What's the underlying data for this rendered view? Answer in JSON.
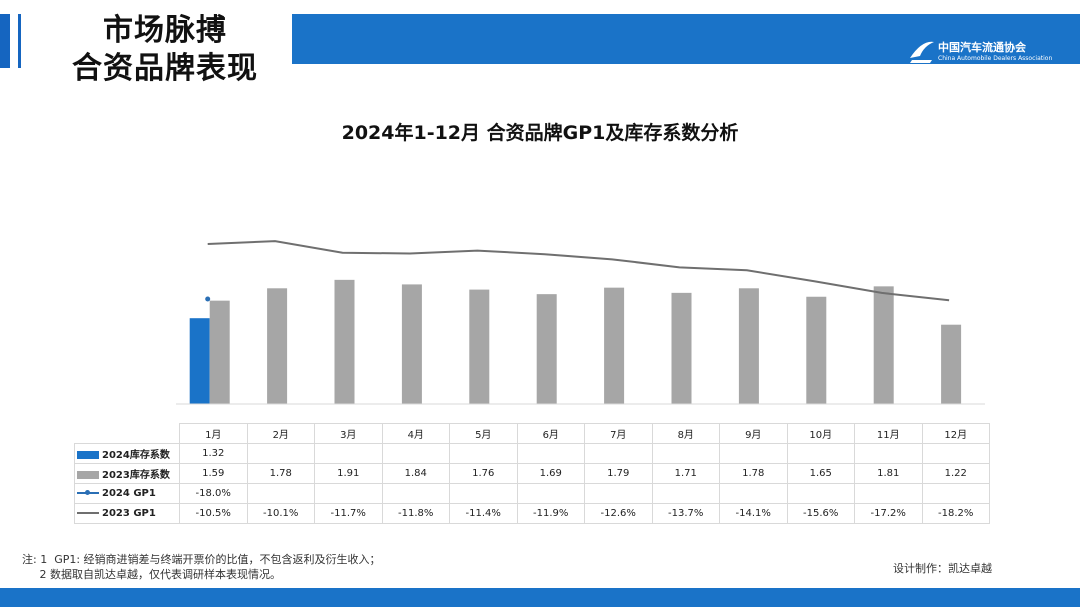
{
  "header": {
    "title_line1": "市场脉搏",
    "title_line2": "合资品牌表现",
    "logo_cn": "中国汽车流通协会",
    "logo_en": "China Automobile Dealers Association",
    "band_color": "#1a73c8"
  },
  "chart_data": {
    "type": "bar",
    "title": "2024年1-12月 合资品牌GP1及库存系数分析",
    "categories": [
      "1月",
      "2月",
      "3月",
      "4月",
      "5月",
      "6月",
      "7月",
      "8月",
      "9月",
      "10月",
      "11月",
      "12月"
    ],
    "bar_series": [
      {
        "name": "2024库存系数",
        "color": "#1a73c8",
        "values": [
          1.32,
          null,
          null,
          null,
          null,
          null,
          null,
          null,
          null,
          null,
          null,
          null
        ],
        "labels": [
          "1.32",
          "",
          "",
          "",
          "",
          "",
          "",
          "",
          "",
          "",
          "",
          ""
        ]
      },
      {
        "name": "2023库存系数",
        "color": "#a6a6a6",
        "values": [
          1.59,
          1.78,
          1.91,
          1.84,
          1.76,
          1.69,
          1.79,
          1.71,
          1.78,
          1.65,
          1.81,
          1.22
        ],
        "labels": [
          "1.59",
          "1.78",
          "1.91",
          "1.84",
          "1.76",
          "1.69",
          "1.79",
          "1.71",
          "1.78",
          "1.65",
          "1.81",
          "1.22"
        ]
      }
    ],
    "line_series": [
      {
        "name": "2024 GP1",
        "color": "#2a6fb5",
        "values": [
          -18.0,
          null,
          null,
          null,
          null,
          null,
          null,
          null,
          null,
          null,
          null,
          null
        ],
        "labels": [
          "-18.0%",
          "",
          "",
          "",
          "",
          "",
          "",
          "",
          "",
          "",
          "",
          ""
        ]
      },
      {
        "name": "2023 GP1",
        "color": "#6f6f6f",
        "values": [
          -10.5,
          -10.1,
          -11.7,
          -11.8,
          -11.4,
          -11.9,
          -12.6,
          -13.7,
          -14.1,
          -15.6,
          -17.2,
          -18.2
        ],
        "labels": [
          "-10.5%",
          "-10.1%",
          "-11.7%",
          "-11.8%",
          "-11.4%",
          "-11.9%",
          "-12.6%",
          "-13.7%",
          "-14.1%",
          "-15.6%",
          "-17.2%",
          "-18.2%"
        ]
      }
    ],
    "axes_visible": false,
    "legend": "table-bottom"
  },
  "footer": {
    "note_line1": "注: 1  GP1: 经销商进销差与终端开票价的比值，不包含返利及衍生收入；",
    "note_line2": "     2 数据取自凯达卓越，仅代表调研样本表现情况。",
    "credit": "设计制作：凯达卓越"
  }
}
